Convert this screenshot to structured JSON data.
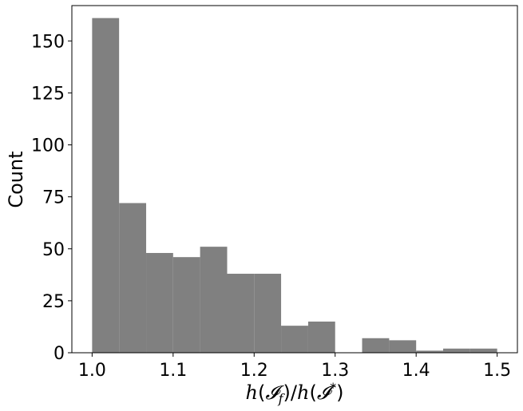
{
  "chart_data": {
    "type": "bar",
    "xlabel": "h(𝓘_f)/h(𝓘*)",
    "ylabel": "Count",
    "xlim": [
      0.975,
      1.525
    ],
    "ylim": [
      0,
      167
    ],
    "xticks": [
      1.0,
      1.1,
      1.2,
      1.3,
      1.4,
      1.5
    ],
    "xtick_labels": [
      "1.0",
      "1.1",
      "1.2",
      "1.3",
      "1.4",
      "1.5"
    ],
    "yticks": [
      0,
      25,
      50,
      75,
      100,
      125,
      150
    ],
    "ytick_labels": [
      "0",
      "25",
      "50",
      "75",
      "100",
      "125",
      "150"
    ],
    "grid": false,
    "bar_color": "#808080",
    "bin_edges": [
      1.0,
      1.0333,
      1.0667,
      1.1,
      1.1333,
      1.1667,
      1.2,
      1.2333,
      1.2667,
      1.3,
      1.3333,
      1.3667,
      1.4,
      1.4333,
      1.4667,
      1.5
    ],
    "values": [
      161,
      72,
      48,
      46,
      51,
      38,
      38,
      13,
      15,
      0,
      7,
      6,
      1,
      2,
      2
    ]
  }
}
